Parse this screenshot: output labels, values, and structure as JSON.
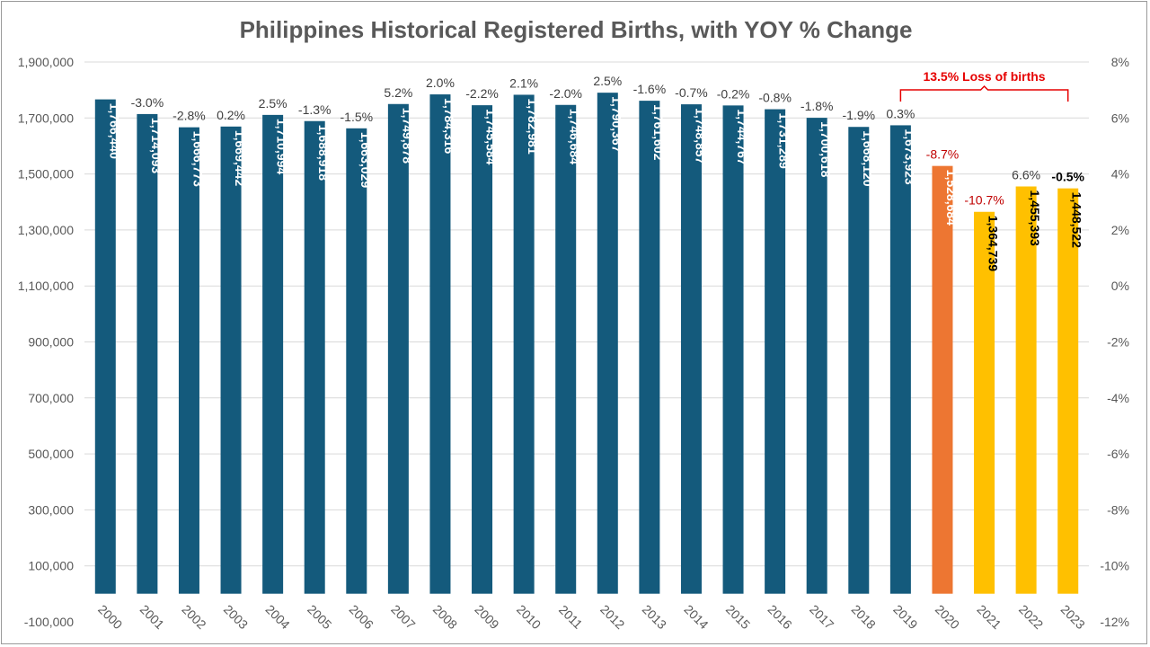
{
  "chart_data": {
    "type": "bar",
    "title": "Philippines Historical Registered Births, with YOY % Change",
    "categories": [
      "2000",
      "2001",
      "2002",
      "2003",
      "2004",
      "2005",
      "2006",
      "2007",
      "2008",
      "2009",
      "2010",
      "2011",
      "2012",
      "2013",
      "2014",
      "2015",
      "2016",
      "2017",
      "2018",
      "2019",
      "2020",
      "2021",
      "2022",
      "2023"
    ],
    "series": [
      {
        "values": [
          1766440,
          1714093,
          1666773,
          1669442,
          1710994,
          1688918,
          1663029,
          1749878,
          1784316,
          1745584,
          1782981,
          1746684,
          1790367,
          1761602,
          1748857,
          1744767,
          1731289,
          1700618,
          1668120,
          1673923,
          1528684,
          1364739,
          1455393,
          1448522
        ],
        "value_labels": [
          "1,766,440",
          "1,714,093",
          "1,666,773",
          "1,669,442",
          "1,710,994",
          "1,688,918",
          "1,663,029",
          "1,749,878",
          "1,784,316",
          "1,745,584",
          "1,782,981",
          "1,746,684",
          "1,790,367",
          "1,761,602",
          "1,748,857",
          "1,744,767",
          "1,731,289",
          "1,700,618",
          "1,668,120",
          "1,673,923",
          "1,528,684",
          "1,364,739",
          "1,455,393",
          "1,448,522"
        ],
        "colors": [
          "#145a7c",
          "#145a7c",
          "#145a7c",
          "#145a7c",
          "#145a7c",
          "#145a7c",
          "#145a7c",
          "#145a7c",
          "#145a7c",
          "#145a7c",
          "#145a7c",
          "#145a7c",
          "#145a7c",
          "#145a7c",
          "#145a7c",
          "#145a7c",
          "#145a7c",
          "#145a7c",
          "#145a7c",
          "#145a7c",
          "#ed7632",
          "#ffc000",
          "#ffc000",
          "#ffc000"
        ],
        "label_colors": [
          "#ffffff",
          "#ffffff",
          "#ffffff",
          "#ffffff",
          "#ffffff",
          "#ffffff",
          "#ffffff",
          "#ffffff",
          "#ffffff",
          "#ffffff",
          "#ffffff",
          "#ffffff",
          "#ffffff",
          "#ffffff",
          "#ffffff",
          "#ffffff",
          "#ffffff",
          "#ffffff",
          "#ffffff",
          "#ffffff",
          "#ffffff",
          "#000000",
          "#000000",
          "#000000"
        ]
      }
    ],
    "yoy_change": [
      "",
      "-3.0%",
      "-2.8%",
      "0.2%",
      "2.5%",
      "-1.3%",
      "-1.5%",
      "5.2%",
      "2.0%",
      "-2.2%",
      "2.1%",
      "-2.0%",
      "2.5%",
      "-1.6%",
      "-0.7%",
      "-0.2%",
      "-0.8%",
      "-1.8%",
      "-1.9%",
      "0.3%",
      "-8.7%",
      "-10.7%",
      "6.6%",
      "-0.5%"
    ],
    "yoy_colors": [
      "#404040",
      "#404040",
      "#404040",
      "#404040",
      "#404040",
      "#404040",
      "#404040",
      "#404040",
      "#404040",
      "#404040",
      "#404040",
      "#404040",
      "#404040",
      "#404040",
      "#404040",
      "#404040",
      "#404040",
      "#404040",
      "#404040",
      "#404040",
      "#c00000",
      "#c00000",
      "#404040",
      "#000000"
    ],
    "yoy_bold": [
      false,
      false,
      false,
      false,
      false,
      false,
      false,
      false,
      false,
      false,
      false,
      false,
      false,
      false,
      false,
      false,
      false,
      false,
      false,
      false,
      false,
      false,
      false,
      true
    ],
    "ylim": [
      -100000,
      1900000
    ],
    "yticks": [
      "1,900,000",
      "1,700,000",
      "1,500,000",
      "1,300,000",
      "1,100,000",
      "900,000",
      "700,000",
      "500,000",
      "300,000",
      "100,000",
      "-100,000"
    ],
    "y2lim": [
      -12,
      8
    ],
    "y2ticks": [
      "8%",
      "6%",
      "4%",
      "2%",
      "0%",
      "-2%",
      "-4%",
      "-6%",
      "-8%",
      "-10%",
      "-12%"
    ],
    "grid": true,
    "annotation": {
      "text": "13.5% Loss of births",
      "from_category": "2019",
      "to_category": "2023",
      "color": "#e60000"
    }
  }
}
